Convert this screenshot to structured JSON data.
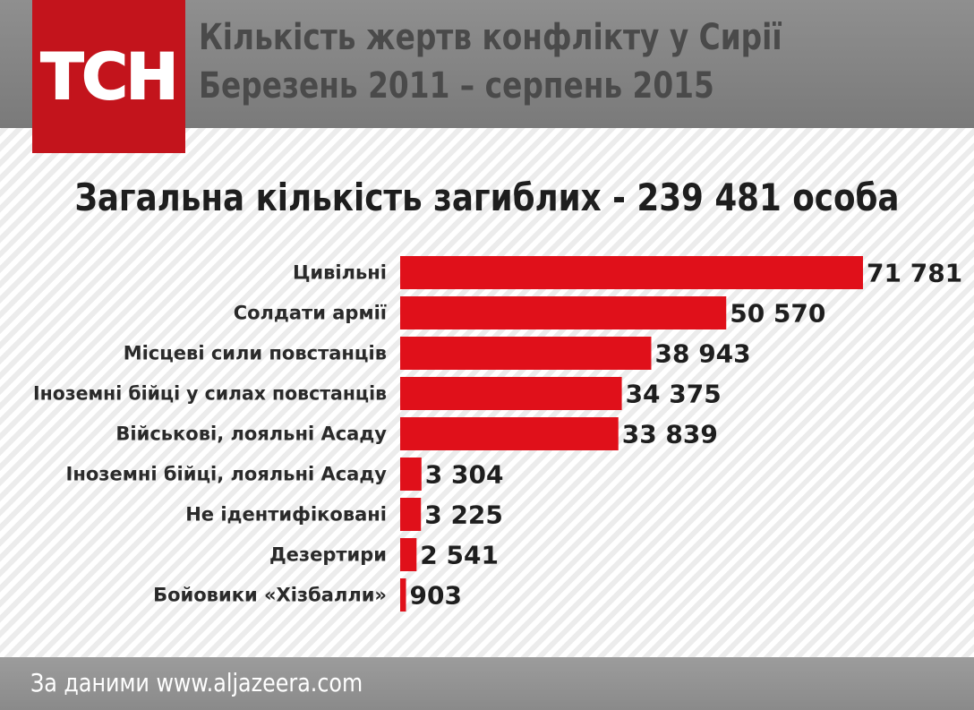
{
  "header": {
    "logo_text": "ТСН",
    "title_line1": "Кількість жертв конфлікту у Сирії",
    "title_line2": "Березень 2011 – серпень 2015"
  },
  "colors": {
    "bar": "#e0101a",
    "logo_bg": "#c3141c",
    "header_bg": "#858585"
  },
  "chart_data": {
    "type": "bar",
    "orientation": "horizontal",
    "title": "Загальна кількість загиблих - 239 481 особа",
    "categories": [
      "Цивільні",
      "Солдати армії",
      "Місцеві сили повстанців",
      "Іноземні бійці у силах повстанців",
      "Військові, лояльні Асаду",
      "Іноземні бійці, лояльні Асаду",
      "Не ідентифіковані",
      "Дезертири",
      "Бойовики «Хізбалли»"
    ],
    "values": [
      71781,
      50570,
      38943,
      34375,
      33839,
      3304,
      3225,
      2541,
      903
    ],
    "value_labels": [
      "71 781",
      "50 570",
      "38 943",
      "34 375",
      "33 839",
      "3 304",
      "3 225",
      "2 541",
      "903"
    ],
    "xlim": [
      0,
      71781
    ]
  },
  "footer": {
    "source": "За даними www.aljazeera.com"
  }
}
